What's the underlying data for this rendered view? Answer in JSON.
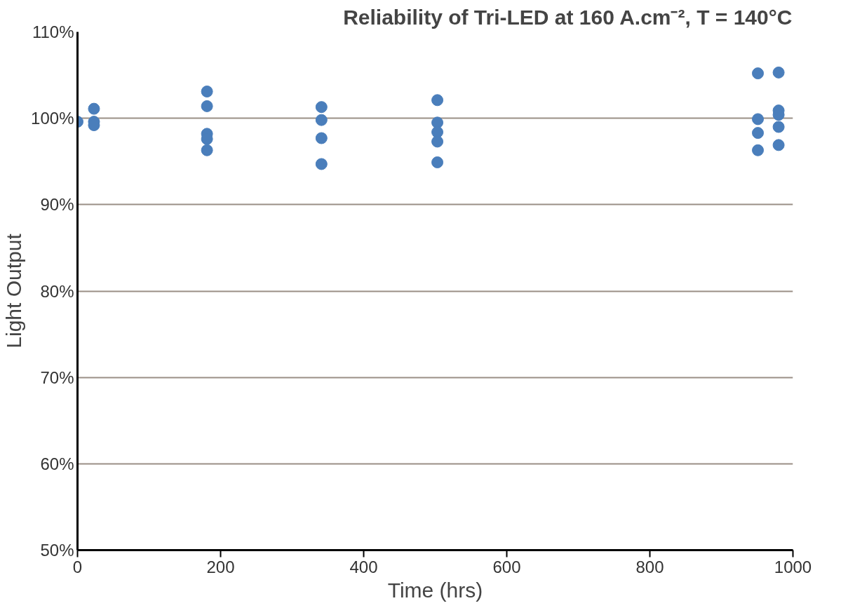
{
  "chart_data": {
    "type": "scatter",
    "title": "Reliability of Tri-LED at 160 A.cm⁻², T = 140°C",
    "xlabel": "Time (hrs)",
    "ylabel": "Light Output",
    "series": [
      {
        "color": "#4a7ebb",
        "x": [
          0,
          23,
          23,
          23,
          181,
          181,
          181,
          181,
          181,
          341,
          341,
          341,
          341,
          503,
          503,
          503,
          503,
          503,
          951,
          951,
          951,
          951,
          980,
          980,
          980,
          980,
          980
        ],
        "values": [
          99.6,
          101.1,
          99.6,
          99.2,
          103.1,
          101.4,
          98.2,
          97.6,
          96.3,
          101.3,
          99.8,
          97.7,
          94.7,
          102.1,
          99.5,
          98.4,
          97.3,
          94.9,
          105.2,
          99.9,
          98.3,
          96.3,
          105.3,
          100.9,
          100.4,
          99.0,
          96.9
        ]
      }
    ],
    "marker": "circle",
    "grid": "y",
    "xlim": [
      0,
      1000
    ],
    "xticks": [
      0,
      200,
      400,
      600,
      800,
      1000
    ],
    "ylim": [
      50,
      110
    ],
    "yticks": [
      {
        "value": 50,
        "label": "50%"
      },
      {
        "value": 60,
        "label": "60%"
      },
      {
        "value": 70,
        "label": "70%"
      },
      {
        "value": 80,
        "label": "80%"
      },
      {
        "value": 90,
        "label": "90%"
      },
      {
        "value": 100,
        "label": "100%"
      },
      {
        "value": 110,
        "label": "110%"
      }
    ]
  }
}
